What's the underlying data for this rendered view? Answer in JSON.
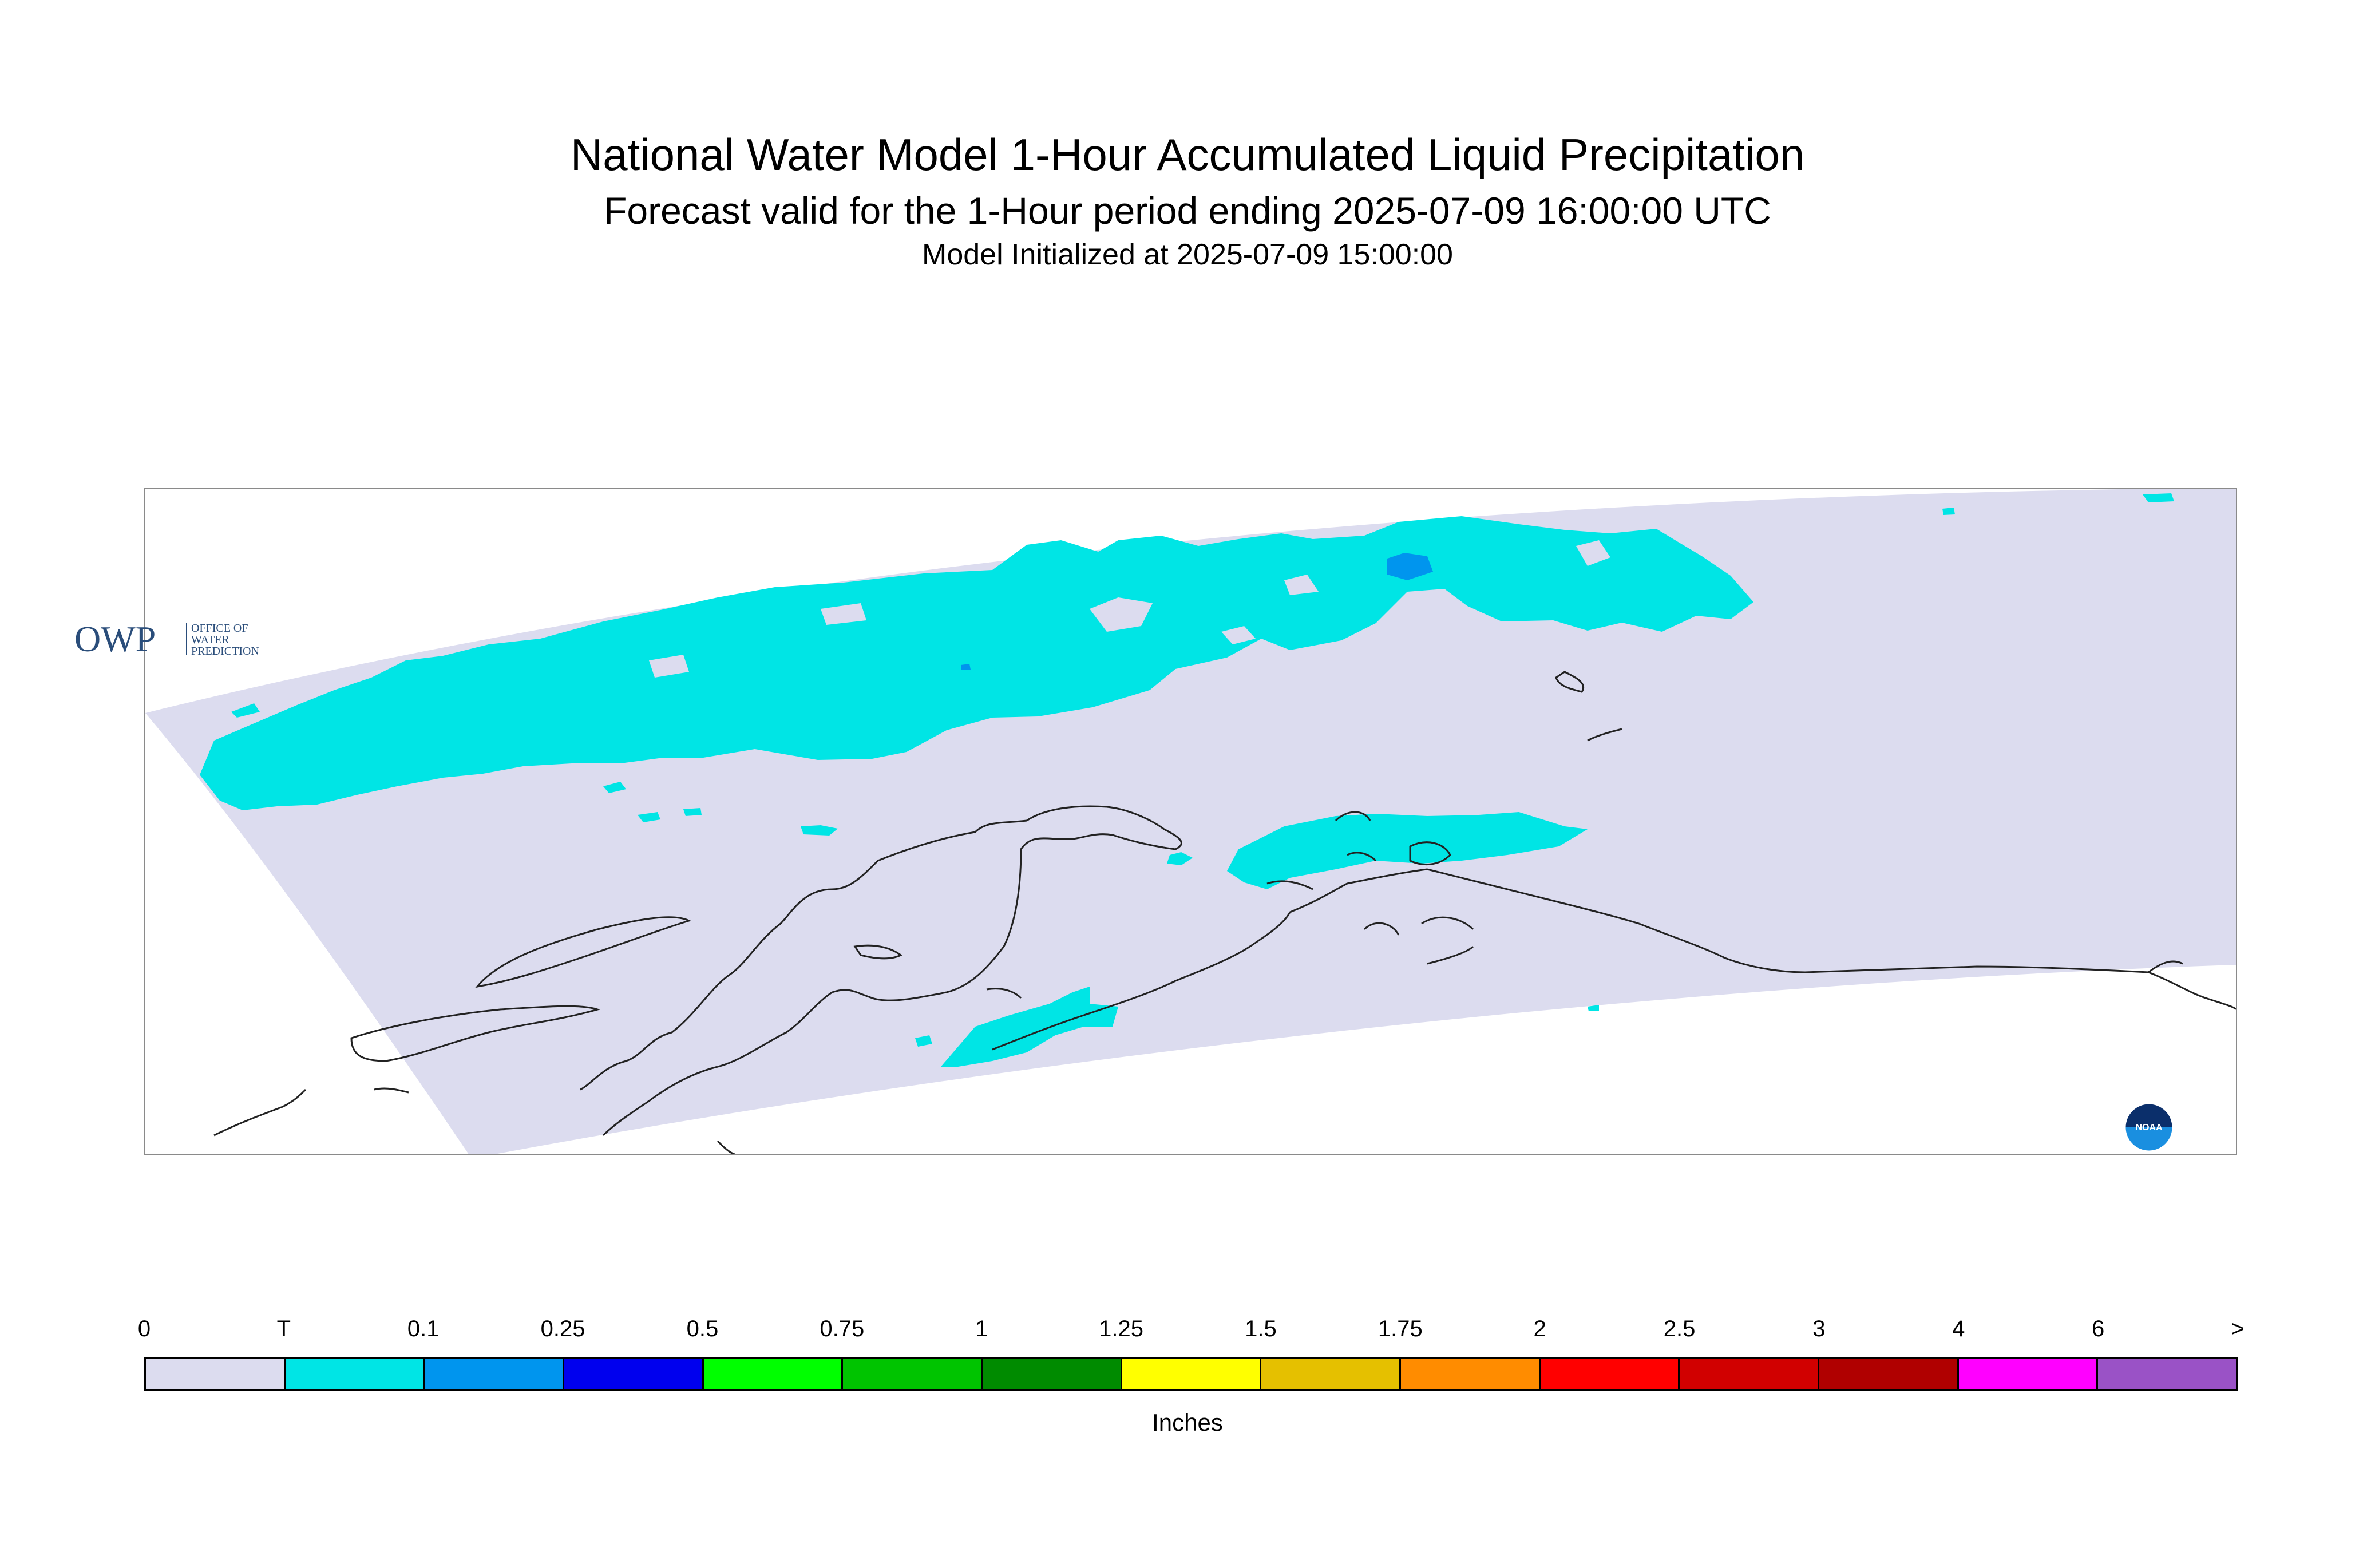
{
  "title": {
    "main": "National Water Model 1-Hour Accumulated Liquid Precipitation",
    "forecast": "Forecast valid for the 1-Hour period ending 2025-07-09 16:00:00 UTC",
    "init": "Model Initialized at 2025-07-09 15:00:00"
  },
  "logos": {
    "owp": {
      "letters": "OWP",
      "line1": "OFFICE OF",
      "line2": "WATER",
      "line3": "PREDICTION"
    },
    "noaa": {
      "text": "NOAA"
    }
  },
  "legend": {
    "unit": "Inches",
    "ticks": [
      "0",
      "T",
      "0.1",
      "0.25",
      "0.5",
      "0.75",
      "1",
      "1.25",
      "1.5",
      "1.75",
      "2",
      "2.5",
      "3",
      "4",
      "6",
      ">"
    ],
    "colors": [
      "#dcdcef",
      "#00e5e5",
      "#0095ee",
      "#0000ee",
      "#00ff00",
      "#00c400",
      "#008b00",
      "#ffff00",
      "#e5c000",
      "#ff8c00",
      "#ff0000",
      "#d10000",
      "#b00000",
      "#ff00ff",
      "#9a52c6"
    ]
  },
  "colors": {
    "domain": "#dcdcef",
    "trace": "#00e5e5",
    "light": "#0095ee",
    "coast": "#222222",
    "frame": "#8a8a8a"
  }
}
